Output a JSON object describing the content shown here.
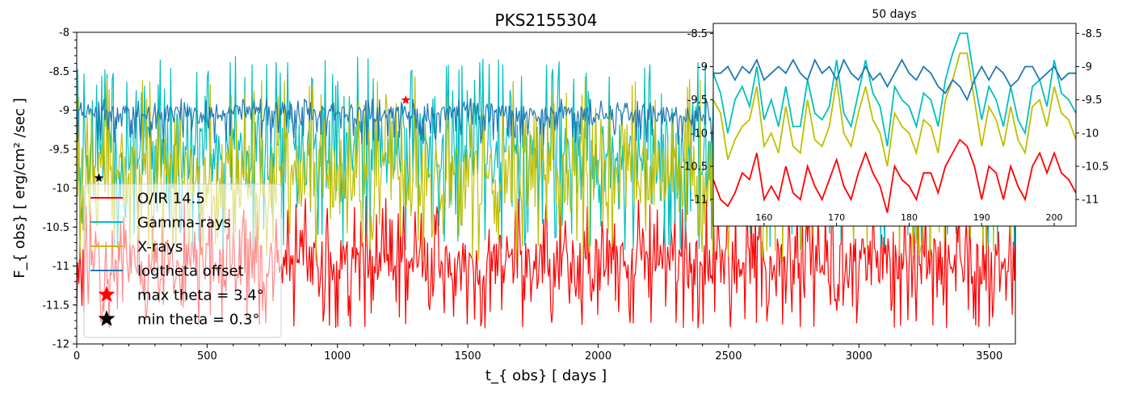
{
  "chart_data": [
    {
      "type": "line",
      "panel": "main",
      "title": "PKS2155304",
      "xlabel": "t_{ obs} [ days ]",
      "ylabel": "F_{ obs} [ erg/cm² /sec ]",
      "xlim": [
        0,
        3600
      ],
      "ylim": [
        -12.0,
        -8.0
      ],
      "x_ticks": [
        0,
        500,
        1000,
        1500,
        2000,
        2500,
        3000,
        3500
      ],
      "y_ticks": [
        -12.0,
        -11.5,
        -11.0,
        -10.5,
        -10.0,
        -9.5,
        -9.0,
        -8.5,
        -8.0
      ],
      "grid": false,
      "legend_position": "lower-left",
      "series": [
        {
          "name": "O/IR 14.5",
          "color": "#ff0000",
          "mean": -10.95,
          "low": -11.8,
          "high": -10.1
        },
        {
          "name": "Gamma-rays",
          "color": "#00bfbf",
          "mean": -9.55,
          "low": -10.8,
          "high": -8.3
        },
        {
          "name": "X-rays",
          "color": "#bfbf00",
          "mean": -9.85,
          "low": -10.95,
          "high": -8.55
        },
        {
          "name": "logtheta offset",
          "color": "#1f77b4",
          "mean": -9.05,
          "low": -9.45,
          "high": -8.85
        }
      ],
      "markers": [
        {
          "name": "max theta = 3.4°",
          "color": "#ff0000",
          "x": 1262,
          "y": -8.87
        },
        {
          "name": "min theta = 0.3°",
          "color": "#000000",
          "x": 85,
          "y": -9.87
        }
      ]
    },
    {
      "type": "line",
      "panel": "inset",
      "title": "50 days",
      "xlim": [
        153,
        203
      ],
      "ylim": [
        -11.4,
        -8.35
      ],
      "x_ticks": [
        160,
        170,
        180,
        190,
        200
      ],
      "y_ticks": [
        -11.0,
        -10.5,
        -10.0,
        -9.5,
        -9.0,
        -8.5
      ],
      "x": [
        153,
        154,
        155,
        156,
        157,
        158,
        159,
        160,
        161,
        162,
        163,
        164,
        165,
        166,
        167,
        168,
        169,
        170,
        171,
        172,
        173,
        174,
        175,
        176,
        177,
        178,
        179,
        180,
        181,
        182,
        183,
        184,
        185,
        186,
        187,
        188,
        189,
        190,
        191,
        192,
        193,
        194,
        195,
        196,
        197,
        198,
        199,
        200,
        201,
        202,
        203
      ],
      "series": [
        {
          "name": "Gamma-rays",
          "color": "#00bfbf",
          "values": [
            -9.1,
            -9.4,
            -10.0,
            -9.5,
            -9.3,
            -9.6,
            -9.0,
            -9.8,
            -9.5,
            -9.9,
            -9.3,
            -9.9,
            -9.9,
            -9.2,
            -9.7,
            -9.8,
            -9.6,
            -8.9,
            -9.7,
            -9.9,
            -9.4,
            -8.9,
            -9.4,
            -9.6,
            -10.2,
            -9.3,
            -9.5,
            -9.6,
            -9.9,
            -9.4,
            -9.5,
            -9.9,
            -9.2,
            -8.8,
            -8.5,
            -8.5,
            -9.2,
            -9.8,
            -9.3,
            -9.5,
            -9.9,
            -9.3,
            -9.8,
            -10.0,
            -9.3,
            -9.2,
            -9.6,
            -8.9,
            -9.4,
            -9.5,
            -9.7
          ]
        },
        {
          "name": "X-rays",
          "color": "#bfbf00",
          "values": [
            -9.5,
            -9.7,
            -10.4,
            -10.1,
            -9.9,
            -9.8,
            -9.3,
            -10.2,
            -10.0,
            -10.3,
            -9.6,
            -10.2,
            -10.3,
            -9.5,
            -10.1,
            -10.2,
            -9.9,
            -9.2,
            -10.0,
            -10.2,
            -9.7,
            -9.3,
            -9.8,
            -10.0,
            -10.5,
            -9.7,
            -9.9,
            -10.0,
            -10.3,
            -9.8,
            -9.9,
            -10.3,
            -9.5,
            -9.2,
            -8.8,
            -8.8,
            -9.5,
            -10.2,
            -9.6,
            -9.8,
            -10.2,
            -9.6,
            -10.1,
            -10.3,
            -9.6,
            -9.5,
            -9.9,
            -9.3,
            -9.7,
            -9.8,
            -10.1
          ]
        },
        {
          "name": "O/IR 14.5",
          "color": "#ff0000",
          "values": [
            -10.7,
            -11.0,
            -11.1,
            -10.9,
            -10.6,
            -10.7,
            -10.3,
            -11.0,
            -10.8,
            -11.0,
            -10.5,
            -10.9,
            -11.0,
            -10.5,
            -10.8,
            -11.0,
            -10.7,
            -10.4,
            -10.8,
            -11.0,
            -10.6,
            -10.3,
            -10.6,
            -10.8,
            -11.2,
            -10.5,
            -10.7,
            -10.8,
            -11.0,
            -10.6,
            -10.6,
            -10.9,
            -10.5,
            -10.3,
            -10.1,
            -10.2,
            -10.5,
            -11.0,
            -10.5,
            -10.6,
            -11.0,
            -10.5,
            -10.8,
            -11.0,
            -10.5,
            -10.3,
            -10.6,
            -10.3,
            -10.6,
            -10.7,
            -10.9
          ]
        },
        {
          "name": "logtheta offset",
          "color": "#1f77b4",
          "values": [
            -9.1,
            -9.1,
            -9.0,
            -9.2,
            -9.0,
            -9.1,
            -8.9,
            -9.2,
            -9.1,
            -9.0,
            -9.1,
            -8.9,
            -9.1,
            -9.2,
            -8.9,
            -9.1,
            -9.0,
            -9.2,
            -8.9,
            -9.1,
            -9.2,
            -9.0,
            -9.2,
            -9.1,
            -9.3,
            -9.1,
            -8.9,
            -9.1,
            -9.2,
            -9.0,
            -9.1,
            -9.3,
            -9.4,
            -9.2,
            -9.3,
            -9.5,
            -9.2,
            -9.0,
            -9.2,
            -9.0,
            -9.1,
            -9.3,
            -9.2,
            -9.0,
            -9.0,
            -9.2,
            -9.1,
            -9.0,
            -9.2,
            -9.1,
            -9.1
          ]
        }
      ]
    }
  ]
}
